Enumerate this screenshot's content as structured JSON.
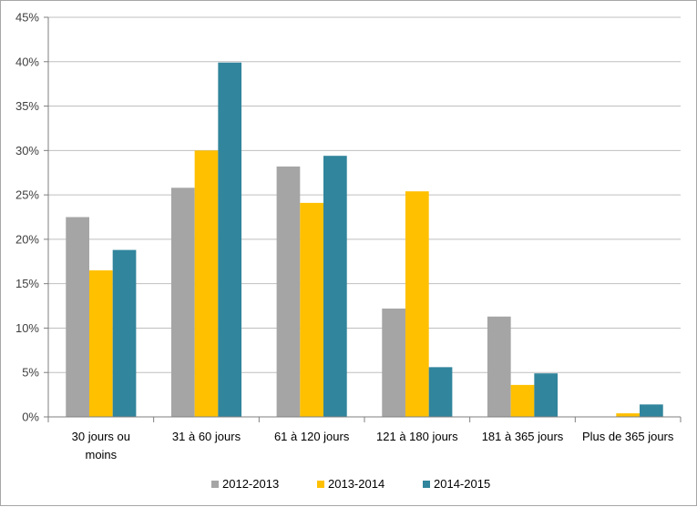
{
  "chart_data": {
    "type": "bar",
    "title": "",
    "xlabel": "",
    "ylabel": "",
    "ylim": [
      0,
      45
    ],
    "yticks": [
      "0%",
      "5%",
      "10%",
      "15%",
      "20%",
      "25%",
      "30%",
      "35%",
      "40%",
      "45%"
    ],
    "grid": true,
    "legend_position": "bottom",
    "categories": [
      [
        "30 jours ou",
        "moins"
      ],
      [
        "31 à 60 jours"
      ],
      [
        "61 à 120 jours"
      ],
      [
        "121 à 180 jours"
      ],
      [
        "181 à 365 jours"
      ],
      [
        "Plus de 365 jours"
      ]
    ],
    "series": [
      {
        "name": "2012-2013",
        "color": "#a5a5a5",
        "values": [
          22.5,
          25.8,
          28.2,
          12.2,
          11.3,
          0
        ]
      },
      {
        "name": "2013-2014",
        "color": "#ffc000",
        "values": [
          16.5,
          30.0,
          24.1,
          25.4,
          3.6,
          0.4
        ]
      },
      {
        "name": "2014-2015",
        "color": "#31859c",
        "values": [
          18.8,
          39.9,
          29.4,
          5.6,
          4.9,
          1.4
        ]
      }
    ]
  }
}
